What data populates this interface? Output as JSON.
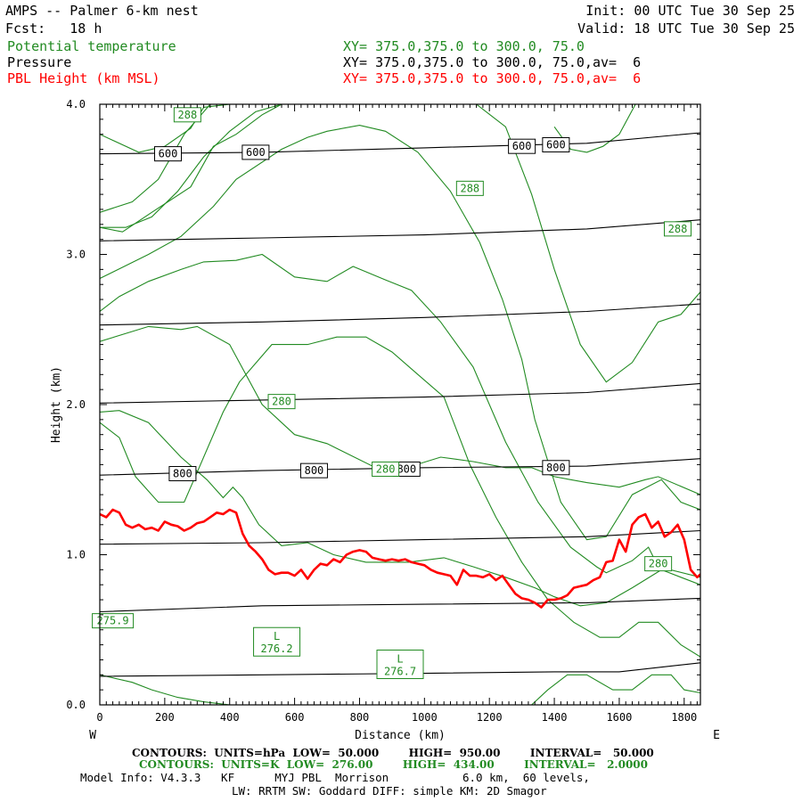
{
  "header": {
    "title": "AMPS -- Palmer 6-km nest",
    "forecast": "Fcst:   18 h",
    "init": "Init: 00 UTC Tue 30 Sep 25",
    "valid": "Valid: 18 UTC Tue 30 Sep 25"
  },
  "legend": {
    "theta_label": "Potential temperature",
    "theta_xy": "XY= 375.0,375.0 to 300.0, 75.0",
    "pressure_label": "Pressure",
    "pressure_xy": "XY= 375.0,375.0 to 300.0, 75.0,av=  6",
    "pbl_label": "PBL Height (km MSL)",
    "pbl_xy": "XY= 375.0,375.0 to 300.0, 75.0,av=  6"
  },
  "colors": {
    "theta": "#228b22",
    "pressure": "#000000",
    "pbl": "#ff0000"
  },
  "footer": {
    "line1": "CONTOURS:  UNITS=hPa  LOW=  50.000        HIGH=  950.00        INTERVAL=   50.000",
    "line2": "CONTOURS:  UNITS=K  LOW=  276.00        HIGH=  434.00        INTERVAL=   2.0000",
    "line3": "Model Info: V4.3.3   KF      MYJ PBL  Morrison           6.0 km,  60 levels,",
    "line4": "LW: RRTM SW: Goddard DIFF: simple KM: 2D Smagor"
  },
  "chart_data": {
    "type": "line",
    "title": "AMPS -- Palmer 6-km nest",
    "xlabel": "Distance (km)",
    "ylabel": "Height (km)",
    "xlim": [
      0,
      1850
    ],
    "ylim": [
      0,
      4.0
    ],
    "x_ticks": [
      0,
      200,
      400,
      600,
      800,
      1000,
      1200,
      1400,
      1600,
      1800
    ],
    "y_ticks": [
      0.0,
      1.0,
      2.0,
      3.0,
      4.0
    ],
    "y_tick_labels": [
      "0.0",
      "1.0",
      "2.0",
      "3.0",
      "4.0"
    ],
    "x_end_labels": {
      "left": "W",
      "right": "E"
    },
    "pressure_contours": [
      {
        "name": "950",
        "x": [
          0,
          500,
          1000,
          1400,
          1600,
          1850
        ],
        "y": [
          0.19,
          0.2,
          0.21,
          0.22,
          0.22,
          0.28
        ]
      },
      {
        "name": "900",
        "x": [
          0,
          500,
          1000,
          1500,
          1850
        ],
        "y": [
          0.62,
          0.66,
          0.67,
          0.68,
          0.71
        ]
      },
      {
        "name": "850",
        "x": [
          0,
          500,
          1000,
          1500,
          1850
        ],
        "y": [
          1.07,
          1.08,
          1.1,
          1.12,
          1.16
        ]
      },
      {
        "name": "800",
        "x": [
          0,
          500,
          1000,
          1500,
          1850
        ],
        "y": [
          1.53,
          1.56,
          1.58,
          1.59,
          1.64
        ]
      },
      {
        "name": "750",
        "x": [
          0,
          500,
          1000,
          1500,
          1850
        ],
        "y": [
          2.01,
          2.03,
          2.05,
          2.08,
          2.14
        ]
      },
      {
        "name": "700",
        "x": [
          0,
          500,
          1000,
          1500,
          1850
        ],
        "y": [
          2.53,
          2.55,
          2.58,
          2.62,
          2.67
        ]
      },
      {
        "name": "650",
        "x": [
          0,
          500,
          1000,
          1500,
          1850
        ],
        "y": [
          3.09,
          3.11,
          3.13,
          3.17,
          3.23
        ]
      },
      {
        "name": "600",
        "x": [
          0,
          500,
          1000,
          1500,
          1850
        ],
        "y": [
          3.67,
          3.68,
          3.71,
          3.74,
          3.81
        ]
      }
    ],
    "pressure_labels": [
      {
        "text": "600",
        "x": 210,
        "y": 3.67
      },
      {
        "text": "600",
        "x": 480,
        "y": 3.68
      },
      {
        "text": "600",
        "x": 1300,
        "y": 3.72
      },
      {
        "text": "600",
        "x": 1405,
        "y": 3.73
      },
      {
        "text": "800",
        "x": 255,
        "y": 1.54
      },
      {
        "text": "800",
        "x": 660,
        "y": 1.56
      },
      {
        "text": "800",
        "x": 945,
        "y": 1.57
      },
      {
        "text": "800",
        "x": 1405,
        "y": 1.58
      }
    ],
    "theta_contours": [
      {
        "name": "t1",
        "x": [
          0,
          60,
          150,
          250,
          320,
          420,
          500,
          600,
          700,
          780,
          880,
          960,
          1050,
          1150,
          1250,
          1350,
          1450,
          1530,
          1560,
          1640,
          1690,
          1720,
          1850
        ],
        "y": [
          2.62,
          2.72,
          2.82,
          2.9,
          2.95,
          2.96,
          3.0,
          2.85,
          2.82,
          2.92,
          2.83,
          2.76,
          2.55,
          2.25,
          1.75,
          1.35,
          1.05,
          0.92,
          0.88,
          0.96,
          1.05,
          0.92,
          0.85
        ]
      },
      {
        "name": "t2",
        "x": [
          0,
          150,
          250,
          350,
          420,
          560,
          640,
          700,
          800,
          880,
          980,
          1080,
          1170,
          1240,
          1300,
          1340,
          1420,
          1500,
          1560,
          1640,
          1730,
          1790,
          1850
        ],
        "y": [
          2.84,
          3.0,
          3.12,
          3.32,
          3.5,
          3.7,
          3.78,
          3.82,
          3.86,
          3.82,
          3.68,
          3.42,
          3.08,
          2.7,
          2.3,
          1.9,
          1.35,
          1.1,
          1.12,
          1.4,
          1.5,
          1.35,
          1.3
        ]
      },
      {
        "name": "t3",
        "x": [
          0,
          150,
          250,
          300,
          400,
          500,
          600,
          700,
          840,
          960,
          1050,
          1150,
          1250,
          1330,
          1400,
          1500,
          1600,
          1680,
          1720,
          1850
        ],
        "y": [
          2.42,
          2.52,
          2.5,
          2.52,
          2.4,
          2.0,
          1.8,
          1.74,
          1.59,
          1.59,
          1.65,
          1.62,
          1.58,
          1.58,
          1.52,
          1.48,
          1.45,
          1.5,
          1.52,
          1.4
        ]
      },
      {
        "name": "t4",
        "x": [
          0,
          60,
          150,
          250,
          330,
          380,
          410,
          440,
          490,
          560,
          640,
          720,
          820,
          950,
          1060,
          1150,
          1250,
          1340,
          1400,
          1480,
          1560,
          1640,
          1730,
          1790,
          1850
        ],
        "y": [
          1.95,
          1.96,
          1.88,
          1.65,
          1.5,
          1.38,
          1.45,
          1.38,
          1.2,
          1.06,
          1.08,
          1.0,
          0.95,
          0.95,
          0.98,
          0.92,
          0.85,
          0.78,
          0.72,
          0.66,
          0.68,
          0.78,
          0.9,
          0.85,
          0.8
        ]
      },
      {
        "name": "t5",
        "x": [
          1400,
          1450,
          1500,
          1550,
          1600,
          1650,
          1700,
          1730,
          1750,
          1790,
          1850
        ],
        "y": [
          3.85,
          3.7,
          3.68,
          3.72,
          3.8,
          4.0,
          4.0,
          4.0,
          4.0,
          4.0,
          4.0
        ]
      },
      {
        "name": "t6",
        "x": [
          0,
          60,
          110,
          180,
          260,
          300,
          380,
          430,
          530,
          640,
          730,
          820,
          900,
          980,
          1060,
          1140,
          1220,
          1300,
          1380,
          1460,
          1540,
          1600,
          1660,
          1720,
          1790,
          1850
        ],
        "y": [
          1.88,
          1.78,
          1.52,
          1.35,
          1.35,
          1.55,
          1.95,
          2.15,
          2.4,
          2.4,
          2.45,
          2.45,
          2.35,
          2.2,
          2.05,
          1.6,
          1.25,
          0.95,
          0.7,
          0.55,
          0.45,
          0.45,
          0.55,
          0.55,
          0.4,
          0.32
        ]
      },
      {
        "name": "t7",
        "x": [
          0,
          70,
          160,
          280,
          350,
          420,
          500,
          560,
          620,
          700,
          780,
          840,
          960,
          1060,
          1160,
          1250,
          1330,
          1400,
          1480,
          1560,
          1640,
          1720,
          1790,
          1850
        ],
        "y": [
          3.18,
          3.15,
          3.28,
          3.45,
          3.72,
          3.8,
          3.93,
          4.0,
          4.0,
          4.0,
          4.0,
          4.0,
          4.0,
          4.0,
          4.0,
          3.85,
          3.4,
          2.9,
          2.4,
          2.15,
          2.28,
          2.55,
          2.6,
          2.75
        ]
      },
      {
        "name": "t8",
        "x": [
          0,
          100,
          160,
          240,
          320,
          400,
          460,
          500,
          540,
          580,
          620,
          660,
          700,
          760,
          820,
          860,
          900,
          960,
          1010,
          1050,
          1100,
          1140,
          1200,
          1260,
          1330,
          1380,
          1440,
          1500,
          1580,
          1640,
          1700,
          1760,
          1800,
          1850
        ],
        "y": [
          0.2,
          0.15,
          0.1,
          0.05,
          0.02,
          0.0,
          0.0,
          0.0,
          0.0,
          0.0,
          0.0,
          0.0,
          0.0,
          0.0,
          0.0,
          0.0,
          0.0,
          0.0,
          0.0,
          0.0,
          0.0,
          0.0,
          0.0,
          0.0,
          0.0,
          0.1,
          0.2,
          0.2,
          0.1,
          0.1,
          0.2,
          0.2,
          0.1,
          0.08
        ]
      },
      {
        "name": "t9",
        "x": [
          0,
          120,
          200,
          280,
          320,
          400,
          460,
          520,
          600,
          680,
          760,
          820,
          900,
          980,
          1060,
          1140,
          1220,
          1300,
          1380,
          1460,
          1540,
          1620,
          1700,
          1760,
          1800,
          1850
        ],
        "y": [
          3.8,
          3.68,
          3.72,
          3.84,
          3.98,
          4.0,
          4.0,
          4.0,
          4.0,
          4.0,
          4.0,
          4.0,
          4.0,
          4.0,
          4.0,
          4.0,
          4.0,
          4.0,
          4.0,
          4.0,
          4.0,
          4.0,
          4.0,
          4.0,
          4.0,
          4.0
        ]
      },
      {
        "name": "t10",
        "x": [
          0,
          80,
          160,
          240,
          320,
          400,
          480,
          560,
          640,
          720,
          800,
          880,
          960,
          1040,
          1120,
          1200,
          1280,
          1360,
          1440,
          1520,
          1600,
          1680,
          1760,
          1850
        ],
        "y": [
          3.18,
          3.18,
          3.25,
          3.42,
          3.65,
          3.82,
          3.95,
          4.0,
          4.0,
          4.0,
          4.0,
          4.0,
          4.0,
          4.0,
          4.0,
          4.0,
          4.0,
          4.0,
          4.0,
          4.0,
          4.0,
          4.0,
          4.0,
          4.0
        ]
      }
    ],
    "theta_mid": [
      {
        "name": "t11",
        "x": [
          0,
          100,
          180,
          260,
          340,
          420,
          500,
          600,
          700,
          800,
          880,
          960,
          1040,
          1120,
          1200,
          1260,
          1300,
          1340,
          1400,
          1480,
          1560,
          1640,
          1720,
          1800,
          1850
        ],
        "y": [
          3.28,
          3.35,
          3.5,
          3.8,
          4.0,
          4.0,
          4.0,
          4.0,
          4.0,
          4.0,
          4.0,
          4.0,
          4.0,
          4.0,
          4.0,
          4.0,
          4.0,
          4.0,
          4.0,
          4.0,
          4.0,
          4.0,
          4.0,
          4.0,
          4.0
        ]
      }
    ],
    "theta_labels": [
      {
        "text": "288",
        "x": 270,
        "y": 3.93
      },
      {
        "text": "288",
        "x": 1140,
        "y": 3.44
      },
      {
        "text": "288",
        "x": 1780,
        "y": 3.17
      },
      {
        "text": "280",
        "x": 560,
        "y": 2.02
      },
      {
        "text": "280",
        "x": 880,
        "y": 1.57
      },
      {
        "text": "280",
        "x": 1720,
        "y": 0.94
      },
      {
        "text": "275.9",
        "x": 40,
        "y": 0.56
      }
    ],
    "lows": [
      {
        "text": "L",
        "value": "276.2",
        "x": 545,
        "y": 0.42
      },
      {
        "text": "L",
        "value": "276.7",
        "x": 925,
        "y": 0.27
      }
    ],
    "pbl_height": {
      "name": "PBL Height (km MSL)",
      "x": [
        0,
        20,
        40,
        60,
        80,
        100,
        120,
        140,
        160,
        180,
        200,
        220,
        240,
        260,
        280,
        300,
        320,
        340,
        360,
        380,
        400,
        420,
        440,
        460,
        480,
        500,
        520,
        540,
        560,
        580,
        600,
        620,
        640,
        660,
        680,
        700,
        720,
        740,
        760,
        780,
        800,
        820,
        840,
        860,
        880,
        900,
        920,
        940,
        960,
        980,
        1000,
        1020,
        1040,
        1060,
        1080,
        1100,
        1120,
        1140,
        1160,
        1180,
        1200,
        1220,
        1240,
        1260,
        1280,
        1300,
        1320,
        1340,
        1360,
        1380,
        1400,
        1420,
        1440,
        1460,
        1480,
        1500,
        1520,
        1540,
        1560,
        1580,
        1600,
        1620,
        1640,
        1660,
        1680,
        1700,
        1720,
        1740,
        1760,
        1780,
        1800,
        1820,
        1840,
        1850
      ],
      "y": [
        1.27,
        1.25,
        1.3,
        1.28,
        1.2,
        1.18,
        1.2,
        1.17,
        1.18,
        1.16,
        1.22,
        1.2,
        1.19,
        1.16,
        1.18,
        1.21,
        1.22,
        1.25,
        1.28,
        1.27,
        1.3,
        1.28,
        1.14,
        1.06,
        1.02,
        0.97,
        0.9,
        0.87,
        0.88,
        0.88,
        0.86,
        0.9,
        0.84,
        0.9,
        0.94,
        0.93,
        0.97,
        0.95,
        1.0,
        1.02,
        1.03,
        1.02,
        0.98,
        0.97,
        0.96,
        0.97,
        0.96,
        0.97,
        0.95,
        0.94,
        0.93,
        0.9,
        0.88,
        0.87,
        0.86,
        0.8,
        0.9,
        0.86,
        0.86,
        0.85,
        0.87,
        0.83,
        0.86,
        0.8,
        0.74,
        0.71,
        0.7,
        0.68,
        0.65,
        0.7,
        0.7,
        0.71,
        0.73,
        0.78,
        0.79,
        0.8,
        0.83,
        0.85,
        0.95,
        0.96,
        1.1,
        1.02,
        1.2,
        1.25,
        1.27,
        1.18,
        1.22,
        1.12,
        1.15,
        1.2,
        1.1,
        0.9,
        0.85,
        0.87
      ]
    }
  }
}
